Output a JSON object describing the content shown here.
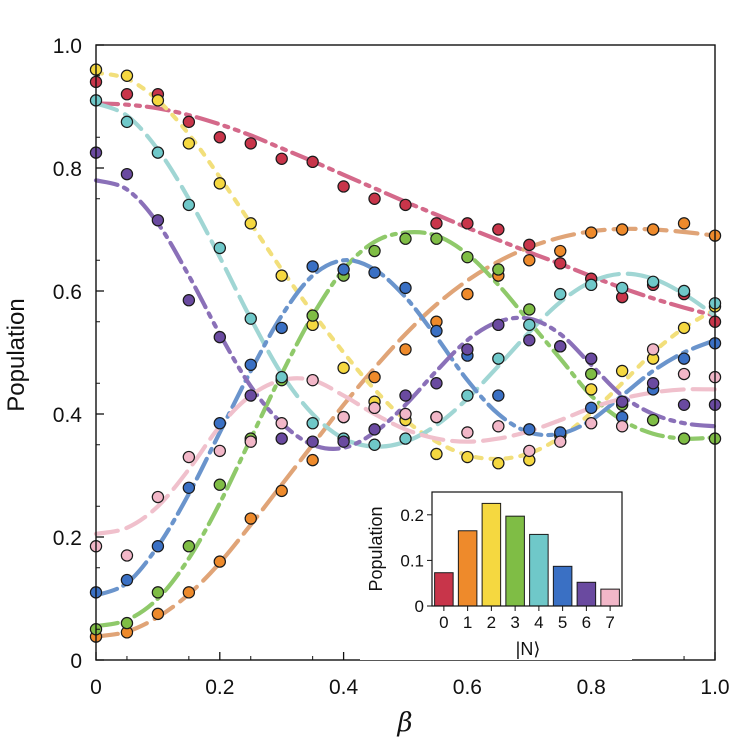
{
  "chart_data": [
    {
      "type": "scatter",
      "xlabel": "β",
      "ylabel": "Population",
      "xlim": [
        0,
        1.0
      ],
      "ylim": [
        0,
        1.0
      ],
      "xticks": [
        "0",
        "0.2",
        "0.4",
        "0.6",
        "0.8",
        "1.0"
      ],
      "yticks": [
        "0",
        "0.2",
        "0.4",
        "0.6",
        "0.8",
        "1.0"
      ],
      "x": [
        0,
        0.05,
        0.1,
        0.15,
        0.2,
        0.25,
        0.3,
        0.35,
        0.4,
        0.45,
        0.5,
        0.55,
        0.6,
        0.65,
        0.7,
        0.75,
        0.8,
        0.85,
        0.9,
        0.95,
        1.0
      ],
      "grid": false,
      "series": [
        {
          "color": "#c8354a",
          "line_color": "#d4698a",
          "points": [
            0.94,
            0.92,
            0.92,
            0.875,
            0.85,
            0.84,
            0.815,
            0.81,
            0.77,
            0.75,
            0.74,
            0.71,
            0.71,
            0.7,
            0.675,
            0.645,
            0.62,
            0.59,
            0.61,
            0.595,
            0.55
          ],
          "curve": [
            0.905,
            0.903,
            0.897,
            0.886,
            0.871,
            0.853,
            0.832,
            0.811,
            0.789,
            0.767,
            0.745,
            0.724,
            0.703,
            0.683,
            0.663,
            0.644,
            0.624,
            0.605,
            0.588,
            0.573,
            0.56
          ]
        },
        {
          "color": "#ee8a2b",
          "line_color": "#e0a477",
          "points": [
            0.038,
            0.045,
            0.075,
            0.11,
            0.16,
            0.23,
            0.275,
            0.325,
            0.395,
            0.46,
            0.505,
            0.55,
            0.595,
            0.625,
            0.65,
            0.665,
            0.695,
            0.7,
            0.7,
            0.71,
            0.69
          ],
          "curve": [
            0.038,
            0.046,
            0.07,
            0.107,
            0.158,
            0.22,
            0.285,
            0.35,
            0.415,
            0.475,
            0.53,
            0.578,
            0.617,
            0.648,
            0.671,
            0.687,
            0.697,
            0.701,
            0.7,
            0.696,
            0.69
          ]
        },
        {
          "color": "#f5d840",
          "line_color": "#f2df7b",
          "points": [
            0.96,
            0.95,
            0.91,
            0.84,
            0.775,
            0.71,
            0.625,
            0.545,
            0.475,
            0.42,
            0.39,
            0.335,
            0.33,
            0.32,
            0.325,
            0.365,
            0.44,
            0.47,
            0.49,
            0.54,
            0.575
          ],
          "curve": [
            0.955,
            0.945,
            0.91,
            0.855,
            0.785,
            0.71,
            0.635,
            0.565,
            0.5,
            0.44,
            0.39,
            0.355,
            0.333,
            0.327,
            0.336,
            0.362,
            0.402,
            0.45,
            0.5,
            0.54,
            0.57
          ]
        },
        {
          "color": "#7fbd45",
          "line_color": "#8fc96a",
          "points": [
            0.05,
            0.06,
            0.11,
            0.185,
            0.285,
            0.36,
            0.455,
            0.56,
            0.625,
            0.665,
            0.685,
            0.685,
            0.655,
            0.635,
            0.57,
            0.51,
            0.465,
            0.415,
            0.39,
            0.36,
            0.36
          ],
          "curve": [
            0.055,
            0.065,
            0.1,
            0.165,
            0.255,
            0.36,
            0.465,
            0.56,
            0.635,
            0.68,
            0.695,
            0.69,
            0.66,
            0.61,
            0.55,
            0.49,
            0.43,
            0.39,
            0.368,
            0.36,
            0.362
          ]
        },
        {
          "color": "#6fc8c9",
          "line_color": "#a0d6d4",
          "points": [
            0.91,
            0.875,
            0.825,
            0.74,
            0.67,
            0.555,
            0.46,
            0.385,
            0.36,
            0.35,
            0.36,
            0.395,
            0.43,
            0.49,
            0.545,
            0.595,
            0.61,
            0.605,
            0.615,
            0.6,
            0.58
          ],
          "curve": [
            0.905,
            0.885,
            0.83,
            0.75,
            0.655,
            0.555,
            0.465,
            0.4,
            0.36,
            0.347,
            0.355,
            0.382,
            0.425,
            0.478,
            0.533,
            0.582,
            0.615,
            0.628,
            0.62,
            0.595,
            0.56
          ]
        },
        {
          "color": "#3a70c4",
          "line_color": "#6a94cc",
          "points": [
            0.11,
            0.13,
            0.185,
            0.28,
            0.385,
            0.48,
            0.54,
            0.64,
            0.635,
            0.63,
            0.605,
            0.535,
            0.495,
            0.43,
            0.375,
            0.37,
            0.41,
            0.395,
            0.44,
            0.49,
            0.515
          ],
          "curve": [
            0.105,
            0.125,
            0.185,
            0.27,
            0.37,
            0.47,
            0.56,
            0.625,
            0.65,
            0.635,
            0.59,
            0.525,
            0.455,
            0.4,
            0.37,
            0.368,
            0.39,
            0.43,
            0.47,
            0.5,
            0.52
          ]
        },
        {
          "color": "#6a4aa0",
          "line_color": "#8a70b8",
          "points": [
            0.825,
            0.79,
            0.715,
            0.585,
            0.525,
            0.43,
            0.36,
            0.355,
            0.355,
            0.375,
            0.43,
            0.45,
            0.505,
            0.545,
            0.52,
            0.51,
            0.49,
            0.42,
            0.45,
            0.415,
            0.415
          ],
          "curve": [
            0.78,
            0.765,
            0.71,
            0.625,
            0.53,
            0.445,
            0.385,
            0.35,
            0.345,
            0.37,
            0.415,
            0.47,
            0.52,
            0.55,
            0.555,
            0.53,
            0.48,
            0.43,
            0.4,
            0.385,
            0.38
          ]
        },
        {
          "color": "#f2b7c8",
          "line_color": "#f0c0cc",
          "points": [
            0.185,
            0.17,
            0.265,
            0.33,
            0.34,
            0.355,
            0.385,
            0.455,
            0.395,
            0.41,
            0.4,
            0.395,
            0.37,
            0.38,
            0.34,
            0.355,
            0.385,
            0.38,
            0.505,
            0.465,
            0.46
          ],
          "curve": [
            0.205,
            0.215,
            0.25,
            0.31,
            0.38,
            0.43,
            0.455,
            0.455,
            0.43,
            0.4,
            0.375,
            0.36,
            0.355,
            0.36,
            0.372,
            0.39,
            0.41,
            0.425,
            0.435,
            0.44,
            0.44
          ]
        }
      ]
    },
    {
      "type": "bar",
      "xlabel": "|N⟩",
      "ylabel": "Population",
      "categories": [
        "0",
        "1",
        "2",
        "3",
        "4",
        "5",
        "6",
        "7"
      ],
      "values": [
        0.073,
        0.165,
        0.225,
        0.197,
        0.157,
        0.087,
        0.052,
        0.037
      ],
      "colors": [
        "#c8354a",
        "#ee8a2b",
        "#f5d840",
        "#7fbd45",
        "#6fc8c9",
        "#3a70c4",
        "#6a4aa0",
        "#f2b7c8"
      ],
      "ylim": [
        0,
        0.25
      ],
      "yticks": [
        "0",
        "0.1",
        "0.2"
      ]
    }
  ]
}
